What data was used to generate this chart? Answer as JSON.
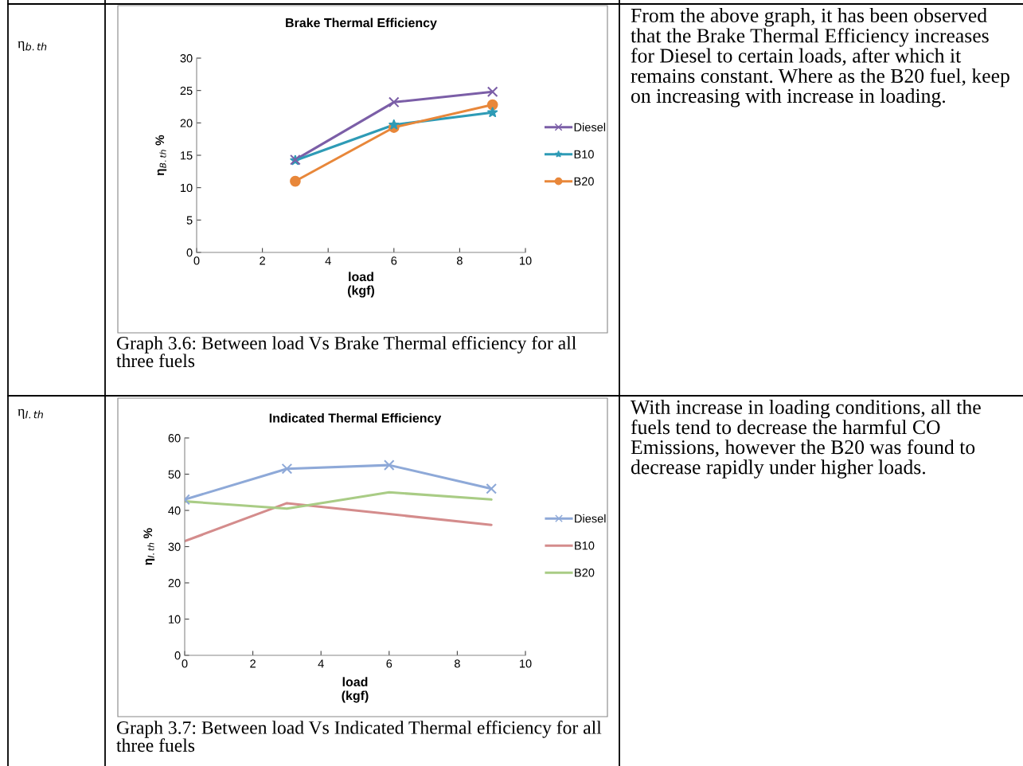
{
  "chart_data": [
    {
      "type": "line",
      "title": "Brake Thermal Efficiency",
      "xlabel": "load\n(kgf)",
      "ylabel": "η$_{B.th}$ %",
      "x": [
        3,
        6,
        9
      ],
      "xlim": [
        0,
        10
      ],
      "xticks": [
        0,
        2,
        4,
        6,
        8,
        10
      ],
      "ylim": [
        0,
        30
      ],
      "yticks": [
        0,
        5,
        10,
        15,
        20,
        25,
        30
      ],
      "grid": false,
      "legend": "right",
      "series": [
        {
          "name": "Diesel",
          "color": "#7b5ea7",
          "marker": "cross",
          "values": [
            14.3,
            23.2,
            24.8
          ]
        },
        {
          "name": "B10",
          "color": "#2e9bb6",
          "marker": "star",
          "values": [
            14.2,
            19.7,
            21.6
          ]
        },
        {
          "name": "B20",
          "color": "#e8873a",
          "marker": "circle",
          "values": [
            11.0,
            19.3,
            22.8
          ]
        }
      ],
      "annotations": [
        "η$_{b.th}$",
        "Graph 3.6: Between load Vs Brake Thermal efficiency for all three fuels",
        "From the above graph, it has been observed that the Brake Thermal Efficiency increases for Diesel to certain loads, after which it remains constant. Where as the B20 fuel, keep on increasing with increase in loading."
      ]
    },
    {
      "type": "line",
      "title": "Indicated Thermal Efficiency",
      "xlabel": "load\n(kgf)",
      "ylabel": "η$_{I.th}$ %",
      "x": [
        0,
        3,
        6,
        9
      ],
      "xlim": [
        0,
        10
      ],
      "xticks": [
        0,
        2,
        4,
        6,
        8,
        10
      ],
      "ylim": [
        0,
        60
      ],
      "yticks": [
        0,
        10,
        20,
        30,
        40,
        50,
        60
      ],
      "grid": false,
      "legend": "right",
      "series": [
        {
          "name": "Diesel",
          "color": "#8ea9d8",
          "marker": "cross",
          "values": [
            43,
            51.5,
            52.5,
            46
          ]
        },
        {
          "name": "B10",
          "color": "#d48c8c",
          "marker": "none",
          "values": [
            31.5,
            42,
            39,
            36
          ]
        },
        {
          "name": "B20",
          "color": "#a9cc85",
          "marker": "none",
          "values": [
            42.5,
            40.5,
            45,
            43
          ]
        }
      ],
      "annotations": [
        "η$_{I.th}$",
        "Graph 3.7: Between load Vs Indicated Thermal efficiency for all three fuels",
        "With increase in loading conditions, all the fuels tend to decrease the harmful CO Emissions, however the B20 was found to decrease rapidly under higher loads."
      ]
    }
  ]
}
